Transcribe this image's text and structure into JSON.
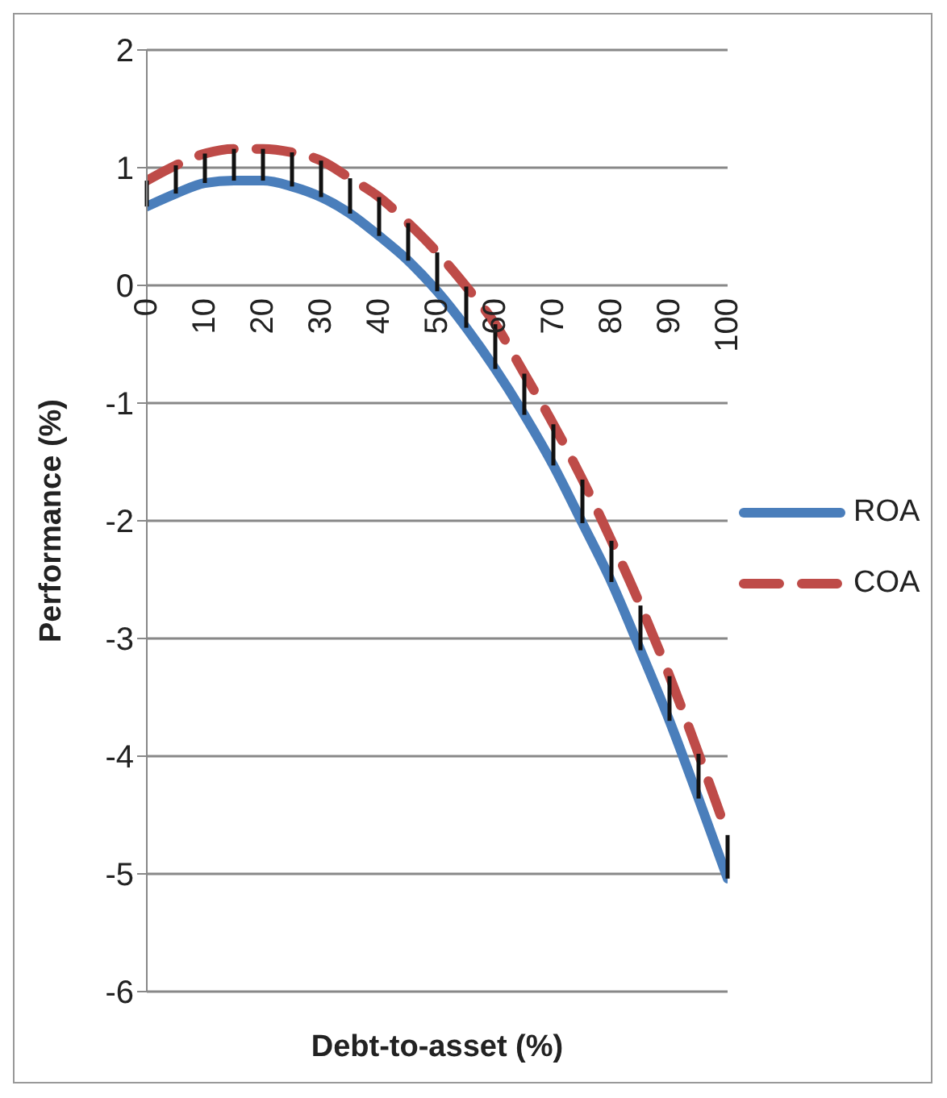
{
  "chart_data": {
    "type": "line",
    "xlabel": "Debt-to-asset (%)",
    "ylabel": "Performance (%)",
    "x": [
      0,
      5,
      10,
      15,
      20,
      25,
      30,
      35,
      40,
      45,
      50,
      55,
      60,
      65,
      70,
      75,
      80,
      85,
      90,
      95,
      100
    ],
    "xlim": [
      0,
      100
    ],
    "xticks": [
      0,
      10,
      20,
      30,
      40,
      50,
      60,
      70,
      80,
      90,
      100
    ],
    "ylim": [
      -6,
      2
    ],
    "yticks": [
      -6,
      -5,
      -4,
      -3,
      -2,
      -1,
      0,
      1,
      2
    ],
    "grid": "y",
    "legend": "right",
    "marker": "none",
    "series": [
      {
        "name": "ROA",
        "color": "#4a7ebb",
        "line_style": "solid",
        "values": [
          0.67,
          0.78,
          0.87,
          0.89,
          0.89,
          0.84,
          0.75,
          0.61,
          0.42,
          0.21,
          -0.05,
          -0.36,
          -0.71,
          -1.1,
          -1.53,
          -2.02,
          -2.52,
          -3.1,
          -3.7,
          -4.36,
          -5.04
        ],
        "errors": [
          [
            0.67,
            0.89
          ],
          [
            0.78,
            1.02
          ],
          [
            0.87,
            1.12
          ],
          [
            0.89,
            1.16
          ],
          [
            0.89,
            1.16
          ],
          [
            0.84,
            1.13
          ],
          [
            0.75,
            1.06
          ],
          [
            0.61,
            0.91
          ],
          [
            0.42,
            0.75
          ],
          [
            0.21,
            0.53
          ],
          [
            -0.05,
            0.28
          ],
          [
            -0.36,
            -0.01
          ],
          [
            -0.71,
            -0.33
          ],
          [
            -1.1,
            -0.75
          ],
          [
            -1.53,
            -1.18
          ],
          [
            -2.02,
            -1.65
          ],
          [
            -2.52,
            -2.17
          ],
          [
            -3.1,
            -2.72
          ],
          [
            -3.7,
            -3.32
          ],
          [
            -4.36,
            -3.98
          ],
          [
            -5.04,
            -4.67
          ]
        ]
      },
      {
        "name": "COA",
        "color": "#be4b48",
        "line_style": "dashed",
        "values": [
          0.89,
          1.02,
          1.12,
          1.16,
          1.16,
          1.13,
          1.06,
          0.91,
          0.75,
          0.53,
          0.28,
          -0.01,
          -0.33,
          -0.75,
          -1.18,
          -1.65,
          -2.17,
          -2.72,
          -3.32,
          -3.98,
          -4.67
        ]
      }
    ]
  }
}
